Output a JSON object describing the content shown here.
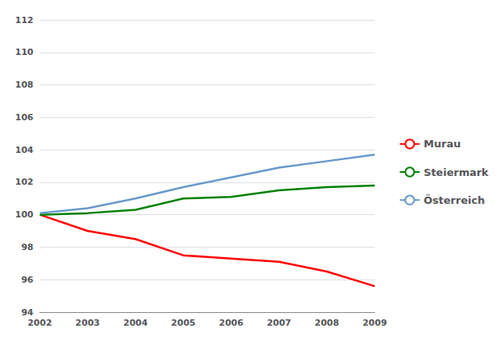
{
  "chart_data": {
    "type": "line",
    "x": [
      2002,
      2003,
      2004,
      2005,
      2006,
      2007,
      2008,
      2009
    ],
    "series": [
      {
        "name": "Murau",
        "color": "#FF0000",
        "values": [
          100.0,
          99.0,
          98.5,
          97.5,
          97.3,
          97.1,
          96.5,
          95.6
        ]
      },
      {
        "name": "Steiermark",
        "color": "#008000",
        "values": [
          100.0,
          100.1,
          100.3,
          101.0,
          101.1,
          101.5,
          101.7,
          101.8
        ]
      },
      {
        "name": "Österreich",
        "color": "#6699CC",
        "values": [
          100.1,
          100.4,
          101.0,
          101.7,
          102.3,
          102.9,
          103.3,
          103.7
        ]
      }
    ],
    "xlim": [
      2002,
      2009
    ],
    "xticks": [
      2002,
      2003,
      2004,
      2005,
      2006,
      2007,
      2008,
      2009
    ],
    "ylim": [
      94,
      112
    ],
    "yticks": [
      94,
      96,
      98,
      100,
      102,
      104,
      106,
      108,
      110,
      112
    ],
    "grid": true,
    "legend": "right"
  }
}
